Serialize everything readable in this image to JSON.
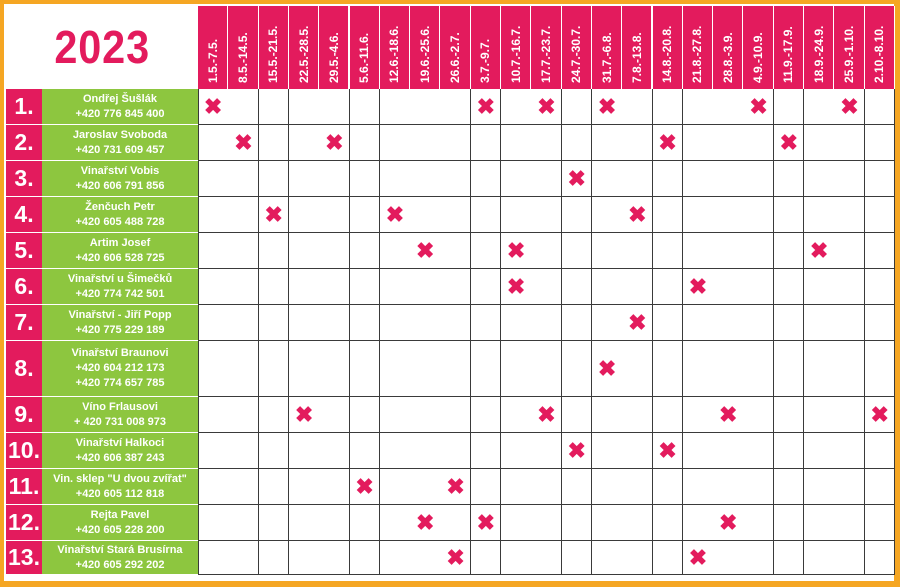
{
  "year": "2023",
  "dates": [
    "1.5.-7.5.",
    "8.5.-14.5.",
    "15.5.-21.5.",
    "22.5.-28.5.",
    "29.5.-4.6.",
    "5.6.-11.6.",
    "12.6.-18.6.",
    "19.6.-25.6.",
    "26.6.-2.7.",
    "3.7.-9.7.",
    "10.7.-16.7.",
    "17.7.-23.7.",
    "24.7.-30.7.",
    "31.7.-6.8.",
    "7.8.-13.8.",
    "14.8.-20.8.",
    "21.8.-27.8.",
    "28.8.-3.9.",
    "4.9.-10.9.",
    "11.9.-17.9.",
    "18.9.-24.9.",
    "25.9.-1.10.",
    "2.10.-8.10."
  ],
  "mark_symbol": "✖",
  "colors": {
    "accent": "#e31b5d",
    "green": "#8dc63f",
    "frame": "#f5a623"
  },
  "rows": [
    {
      "num": "1.",
      "lines": [
        "Ondřej Šušlák",
        "+420 776 845 400"
      ],
      "marks": [
        0,
        9,
        11,
        13,
        18,
        21
      ]
    },
    {
      "num": "2.",
      "lines": [
        "Jaroslav Svoboda",
        "+420 731 609 457"
      ],
      "marks": [
        1,
        4,
        15,
        19
      ]
    },
    {
      "num": "3.",
      "lines": [
        "Vinařství Vobis",
        "+420 606 791 856"
      ],
      "marks": [
        12
      ]
    },
    {
      "num": "4.",
      "lines": [
        "Ženčuch Petr",
        "+420 605 488 728"
      ],
      "marks": [
        2,
        6,
        14
      ]
    },
    {
      "num": "5.",
      "lines": [
        "Artim Josef",
        "+420 606 528 725"
      ],
      "marks": [
        7,
        10,
        20
      ]
    },
    {
      "num": "6.",
      "lines": [
        "Vinařství u Šimečků",
        "+420 774 742 501"
      ],
      "marks": [
        10,
        16
      ]
    },
    {
      "num": "7.",
      "lines": [
        "Vinařství - Jiří Popp",
        "+420 775 229 189"
      ],
      "marks": [
        14
      ]
    },
    {
      "num": "8.",
      "lines": [
        "Vinařství Braunovi",
        "+420 604 212 173",
        "+420 774 657 785"
      ],
      "marks": [
        13
      ]
    },
    {
      "num": "9.",
      "lines": [
        "Víno Frlausovi",
        "+ 420 731 008 973"
      ],
      "marks": [
        3,
        11,
        17,
        22
      ]
    },
    {
      "num": "10.",
      "lines": [
        "Vinařství Halkoci",
        "+420 606 387 243"
      ],
      "marks": [
        12,
        15
      ]
    },
    {
      "num": "11.",
      "lines": [
        "Vin. sklep \"U dvou zvířat\"",
        "+420 605 112 818"
      ],
      "marks": [
        5,
        8
      ]
    },
    {
      "num": "12.",
      "lines": [
        "Rejta Pavel",
        "+420 605 228 200"
      ],
      "marks": [
        7,
        9,
        17
      ]
    },
    {
      "num": "13.",
      "lines": [
        "Vinařství Stará Brusírna",
        "+420 605 292 202"
      ],
      "marks": [
        8,
        16
      ]
    }
  ]
}
